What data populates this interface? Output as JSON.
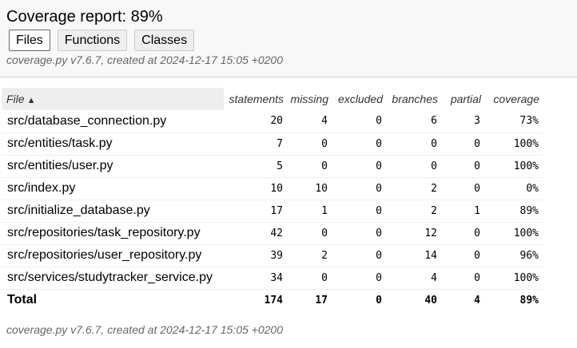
{
  "header": {
    "title": "Coverage report: 89%",
    "nav": [
      {
        "label": "Files",
        "current": true
      },
      {
        "label": "Functions",
        "current": false
      },
      {
        "label": "Classes",
        "current": false
      }
    ],
    "created": "coverage.py v7.6.7, created at 2024-12-17 15:05 +0200"
  },
  "table": {
    "columns": {
      "file": "File",
      "sort_indicator": "▲",
      "statements": "statements",
      "missing": "missing",
      "excluded": "excluded",
      "branches": "branches",
      "partial": "partial",
      "coverage": "coverage"
    },
    "rows": [
      {
        "file": "src/database_connection.py",
        "statements": "20",
        "missing": "4",
        "excluded": "0",
        "branches": "6",
        "partial": "3",
        "coverage": "73%"
      },
      {
        "file": "src/entities/task.py",
        "statements": "7",
        "missing": "0",
        "excluded": "0",
        "branches": "0",
        "partial": "0",
        "coverage": "100%"
      },
      {
        "file": "src/entities/user.py",
        "statements": "5",
        "missing": "0",
        "excluded": "0",
        "branches": "0",
        "partial": "0",
        "coverage": "100%"
      },
      {
        "file": "src/index.py",
        "statements": "10",
        "missing": "10",
        "excluded": "0",
        "branches": "2",
        "partial": "0",
        "coverage": "0%"
      },
      {
        "file": "src/initialize_database.py",
        "statements": "17",
        "missing": "1",
        "excluded": "0",
        "branches": "2",
        "partial": "1",
        "coverage": "89%"
      },
      {
        "file": "src/repositories/task_repository.py",
        "statements": "42",
        "missing": "0",
        "excluded": "0",
        "branches": "12",
        "partial": "0",
        "coverage": "100%"
      },
      {
        "file": "src/repositories/user_repository.py",
        "statements": "39",
        "missing": "2",
        "excluded": "0",
        "branches": "14",
        "partial": "0",
        "coverage": "96%"
      },
      {
        "file": "src/services/studytracker_service.py",
        "statements": "34",
        "missing": "0",
        "excluded": "0",
        "branches": "4",
        "partial": "0",
        "coverage": "100%"
      }
    ],
    "total": {
      "file": "Total",
      "statements": "174",
      "missing": "17",
      "excluded": "0",
      "branches": "40",
      "partial": "4",
      "coverage": "89%"
    }
  },
  "footer": {
    "created": "coverage.py v7.6.7, created at 2024-12-17 15:05 +0200"
  }
}
